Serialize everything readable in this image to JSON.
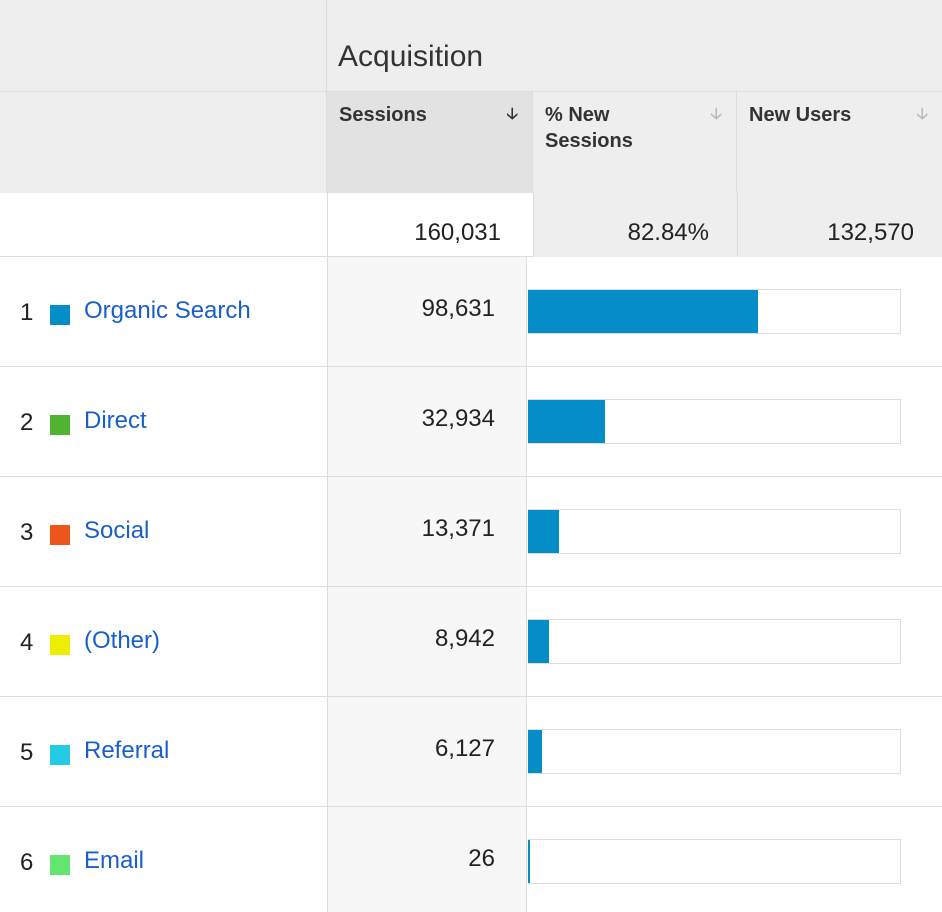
{
  "header": {
    "group": "Acquisition",
    "columns": [
      "Sessions",
      "% New Sessions",
      "New Users"
    ]
  },
  "totals": {
    "sessions": 160031,
    "sessions_label": "160,031",
    "new_sessions_label": "82.84%",
    "new_users_label": "132,570"
  },
  "channels": {
    "ranks": [
      1,
      2,
      3,
      4,
      5,
      6
    ],
    "names": [
      "Organic Search",
      "Direct",
      "Social",
      "(Other)",
      "Referral",
      "Email"
    ],
    "colors": [
      "#058dc7",
      "#50b432",
      "#ed561b",
      "#edef00",
      "#24cbe5",
      "#64e572"
    ],
    "values": [
      98631,
      32934,
      13371,
      8942,
      6127,
      26
    ],
    "value_labels": [
      "98,631",
      "32,934",
      "13,371",
      "8,942",
      "6,127",
      "26"
    ],
    "bar_color": "#058dc7"
  }
}
